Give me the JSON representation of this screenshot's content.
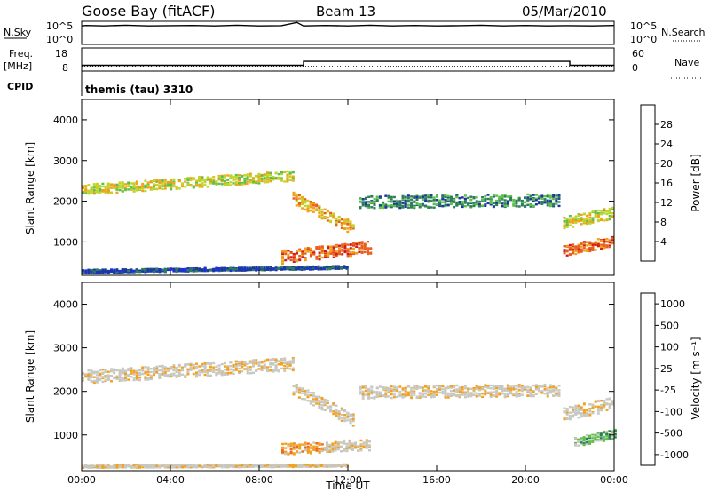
{
  "header": {
    "station": "Goose Bay (fitACF)",
    "beam": "Beam 13",
    "date": "05/Mar/2010"
  },
  "top_panels": {
    "nsky_label": "N.Sky",
    "nsky_ticks": [
      "10^5",
      "10^0"
    ],
    "nsearch_ticks": [
      "10^5",
      "10^0"
    ],
    "nsearch_label": "N.Search",
    "freq_label_1": "Freq.",
    "freq_label_2": "[MHz]",
    "freq_ticks": [
      "18",
      "8"
    ],
    "nave_ticks": [
      "60",
      "0"
    ],
    "nave_label": "Nave",
    "cpid_label": "CPID",
    "cpid_value": "themis (tau) 3310"
  },
  "colors": {
    "power": [
      "#1f2fd8",
      "#1a3a99",
      "#2f7d5a",
      "#5cc04a",
      "#c2d42a",
      "#f0a21a",
      "#e8601e",
      "#d01c1c"
    ],
    "velocity": [
      "#d01c1c",
      "#f06a1c",
      "#f3a21f",
      "#c8c8c2",
      "#c8c8c2",
      "#5cc04a",
      "#2f7d5a",
      "#1a3a99"
    ]
  },
  "chart_data": [
    {
      "type": "line",
      "title": "N.Sky / N.Search",
      "x_units": "hours UT",
      "series": [
        {
          "name": "N.Sky",
          "x": [
            0,
            0.2,
            1,
            2,
            3,
            4,
            5,
            6,
            7,
            8,
            9,
            9.7,
            10,
            11,
            12,
            13,
            14,
            15,
            16,
            17,
            18,
            19,
            20,
            21,
            22,
            23,
            24
          ],
          "values": [
            0.8,
            0.82,
            0.8,
            0.83,
            0.8,
            0.81,
            0.82,
            0.8,
            0.83,
            0.8,
            0.81,
            0.95,
            0.8,
            0.82,
            0.8,
            0.83,
            0.8,
            0.82,
            0.8,
            0.81,
            0.83,
            0.8,
            0.82,
            0.8,
            0.81,
            0.8,
            0.82
          ]
        }
      ]
    },
    {
      "type": "line",
      "title": "Freq / Nave",
      "ylabel": "Freq. [MHz]",
      "ylim": [
        8,
        18
      ],
      "series": [
        {
          "name": "Freq.",
          "x": [
            0,
            10,
            10,
            22,
            22,
            24
          ],
          "values": [
            10.5,
            10.5,
            12.2,
            12.2,
            10.5,
            10.5
          ]
        },
        {
          "name": "Nave",
          "x": [
            0,
            24
          ],
          "values": [
            10,
            10
          ]
        }
      ]
    },
    {
      "type": "heatmap",
      "ylabel": "Slant Range [km]",
      "ylim": [
        180,
        4500
      ],
      "yticks": [
        "1000",
        "2000",
        "3000",
        "4000"
      ],
      "colorbar_label": "Power [dB]",
      "colorbar_ticks": [
        "4",
        "8",
        "12",
        "16",
        "20",
        "24",
        "28"
      ],
      "regions": [
        {
          "x0": 0.0,
          "x1": 9.5,
          "y_start": 2300,
          "y_end": 2650,
          "width": 260,
          "level": 4
        },
        {
          "x0": 9.5,
          "x1": 12.2,
          "y_start": 2100,
          "y_end": 1350,
          "width": 300,
          "level": 5
        },
        {
          "x0": 9.0,
          "x1": 13.0,
          "y_start": 650,
          "y_end": 900,
          "width": 320,
          "level": 6
        },
        {
          "x0": 12.5,
          "x1": 21.5,
          "y_start": 2000,
          "y_end": 2050,
          "width": 300,
          "level": 2
        },
        {
          "x0": 21.7,
          "x1": 24.0,
          "y_start": 1500,
          "y_end": 1750,
          "width": 300,
          "level": 4
        },
        {
          "x0": 21.7,
          "x1": 24.0,
          "y_start": 800,
          "y_end": 1050,
          "width": 260,
          "level": 6
        },
        {
          "x0": 0.0,
          "x1": 12.0,
          "y_start": 300,
          "y_end": 400,
          "width": 80,
          "level": 1
        }
      ]
    },
    {
      "type": "heatmap",
      "ylabel": "Slant Range [km]",
      "xlabel": "Time UT",
      "ylim": [
        180,
        4500
      ],
      "yticks": [
        "1000",
        "2000",
        "3000",
        "4000"
      ],
      "xticks": [
        "00:00",
        "04:00",
        "08:00",
        "12:00",
        "16:00",
        "20:00",
        "00:00"
      ],
      "colorbar_label": "Velocity [m s-1]",
      "colorbar_ticks": [
        "1000",
        "500",
        "100",
        "25",
        "-25",
        "-100",
        "-500",
        "-1000"
      ],
      "regions": [
        {
          "x0": 0.0,
          "x1": 9.5,
          "y_start": 2350,
          "y_end": 2650,
          "width": 300,
          "level": 3
        },
        {
          "x0": 9.5,
          "x1": 12.2,
          "y_start": 2100,
          "y_end": 1350,
          "width": 300,
          "level": 3
        },
        {
          "x0": 9.0,
          "x1": 11.0,
          "y_start": 700,
          "y_end": 750,
          "width": 260,
          "level": 2
        },
        {
          "x0": 11.0,
          "x1": 13.0,
          "y_start": 750,
          "y_end": 800,
          "width": 260,
          "level": 3
        },
        {
          "x0": 12.5,
          "x1": 21.5,
          "y_start": 2000,
          "y_end": 2050,
          "width": 280,
          "level": 3
        },
        {
          "x0": 21.7,
          "x1": 24.0,
          "y_start": 1500,
          "y_end": 1750,
          "width": 300,
          "level": 3
        },
        {
          "x0": 22.2,
          "x1": 24.0,
          "y_start": 850,
          "y_end": 1050,
          "width": 220,
          "level": 5
        },
        {
          "x0": 0.0,
          "x1": 12.0,
          "y_start": 300,
          "y_end": 320,
          "width": 60,
          "level": 3
        }
      ]
    }
  ],
  "axis_labels": {
    "power_ylabel": "Slant Range [km]",
    "velocity_ylabel": "Slant Range [km]",
    "xlabel": "Time UT",
    "power_cb_label": "Power [dB]",
    "velocity_cb_label": "Velocity [m s⁻¹]"
  }
}
